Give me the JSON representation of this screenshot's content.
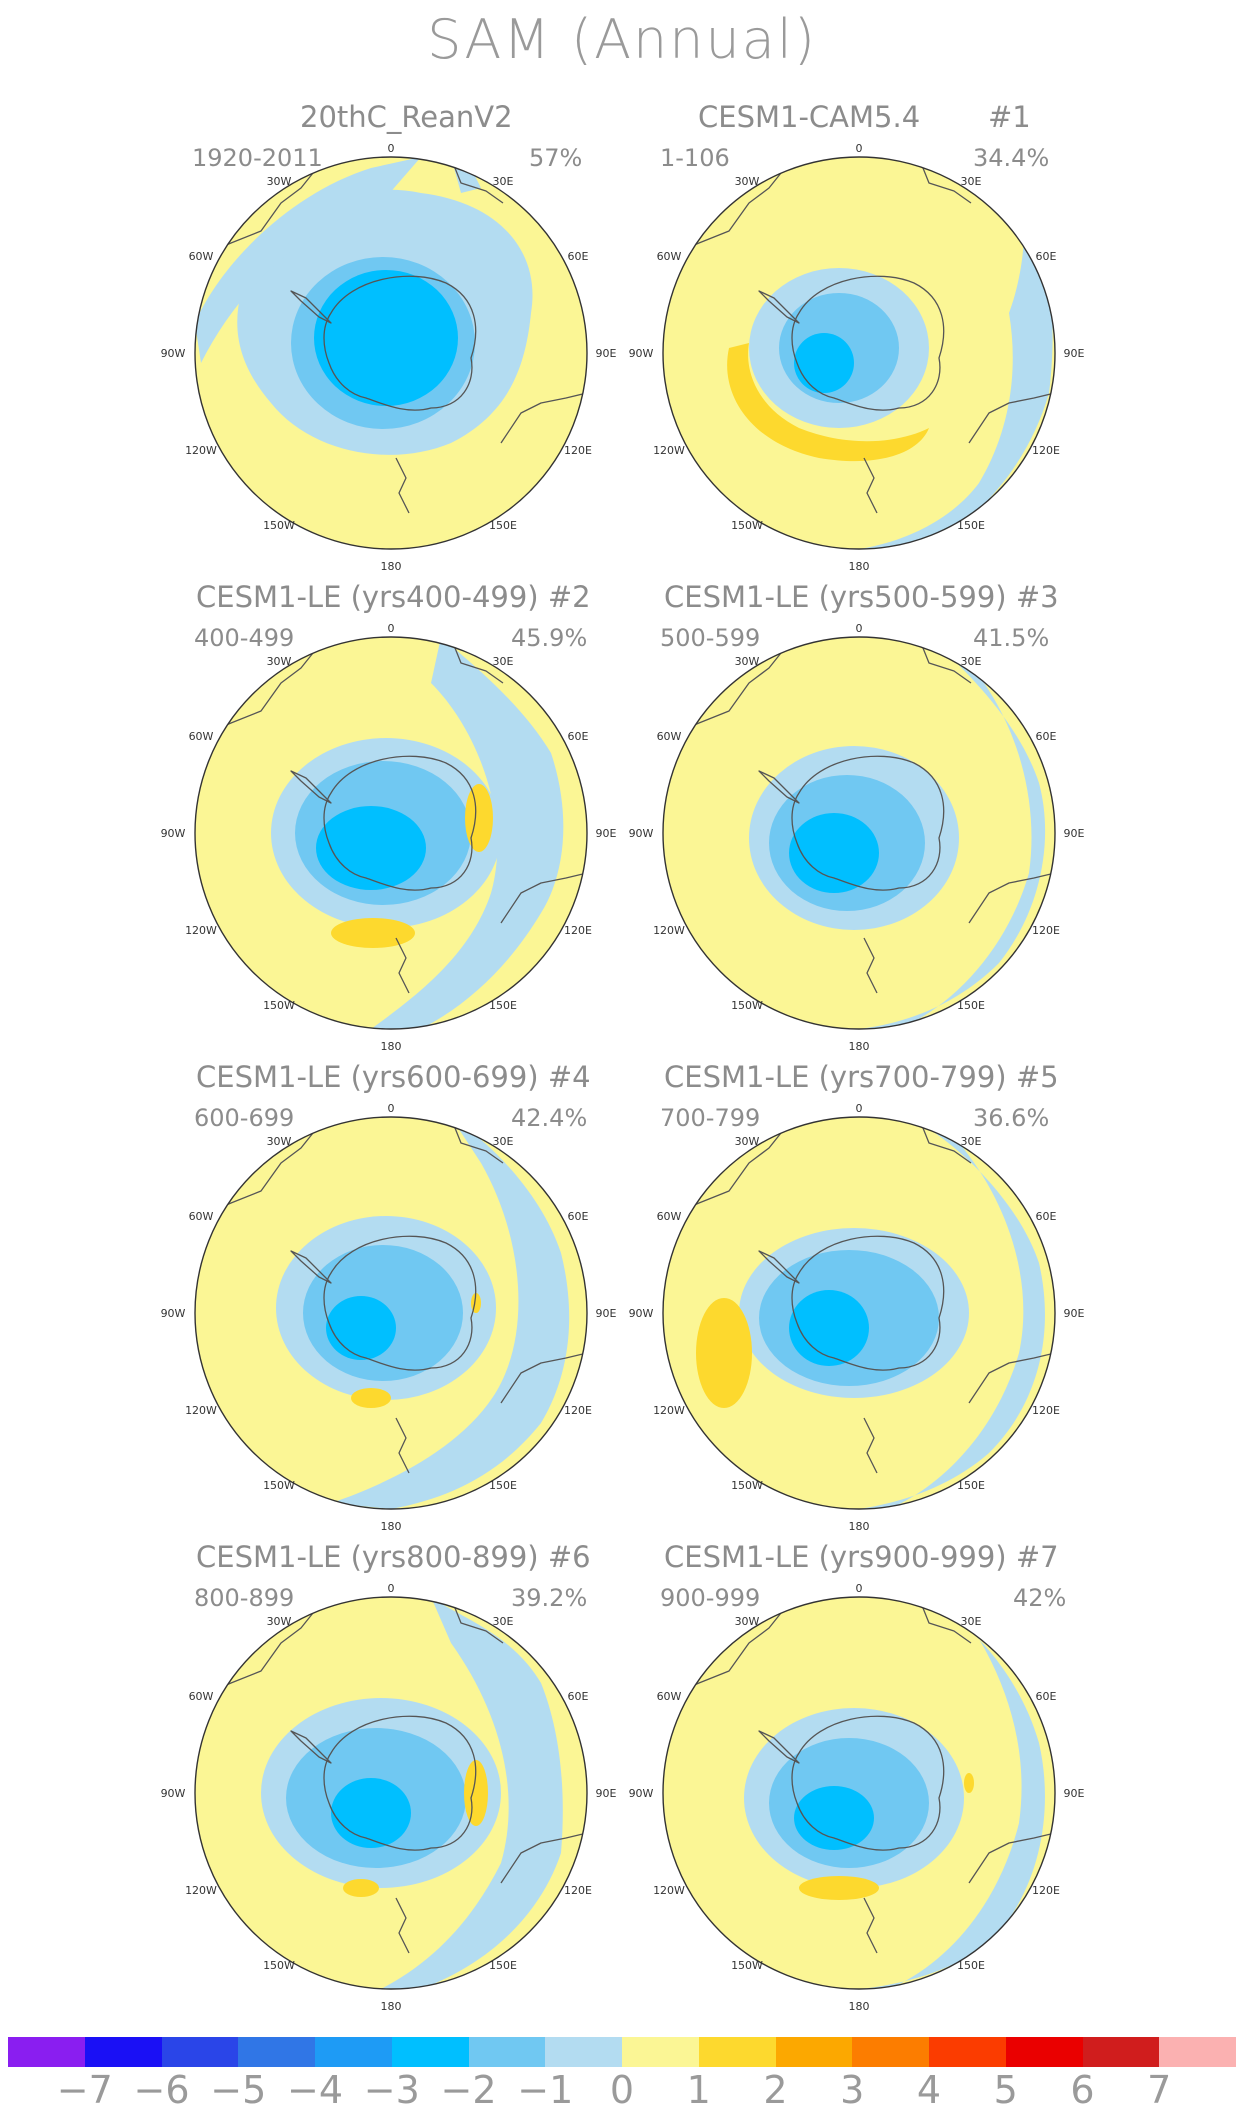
{
  "title": "SAM (Annual)",
  "map_labels": {
    "lon_top": "0",
    "lon_30e": "30E",
    "lon_60e": "60E",
    "lon_90e": "90E",
    "lon_120e": "120E",
    "lon_150e": "150E",
    "lon_180": "180",
    "lon_150w": "150W",
    "lon_120w": "120W",
    "lon_90w": "90W",
    "lon_60w": "60W",
    "lon_30w": "30W"
  },
  "panels": [
    {
      "title": "20thC_ReanV2",
      "tag": "",
      "period": "1920-2011",
      "percent": "57%"
    },
    {
      "title": "CESM1-CAM5.4",
      "tag": "#1",
      "period": "1-106",
      "percent": "34.4%"
    },
    {
      "title": "CESM1-LE (yrs400-499) #2",
      "tag": "",
      "period": "400-499",
      "percent": "45.9%"
    },
    {
      "title": "CESM1-LE (yrs500-599) #3",
      "tag": "",
      "period": "500-599",
      "percent": "41.5%"
    },
    {
      "title": "CESM1-LE (yrs600-699) #4",
      "tag": "",
      "period": "600-699",
      "percent": "42.4%"
    },
    {
      "title": "CESM1-LE (yrs700-799) #5",
      "tag": "",
      "period": "700-799",
      "percent": "36.6%"
    },
    {
      "title": "CESM1-LE (yrs800-899) #6",
      "tag": "",
      "period": "800-899",
      "percent": "39.2%"
    },
    {
      "title": "CESM1-LE (yrs900-999) #7",
      "tag": "",
      "period": "900-999",
      "percent": "42%"
    }
  ],
  "colorbar": {
    "labels": [
      "-7",
      "-6",
      "-5",
      "-4",
      "-3",
      "-2",
      "-1",
      "0",
      "1",
      "2",
      "3",
      "4",
      "5",
      "6",
      "7"
    ],
    "colors": [
      "#8a1ef0",
      "#1a10f5",
      "#2a45e8",
      "#3076e6",
      "#1e9bf5",
      "#00bfff",
      "#70c8f2",
      "#b3dcf1",
      "#fbf695",
      "#fdd92e",
      "#fca800",
      "#fc7d00",
      "#fb3c00",
      "#ea0000",
      "#d01d1d",
      "#fbb1b1"
    ],
    "palette_names": {
      "pos1": "#fbf695",
      "pos2": "#fdd92e",
      "neg1": "#b3dcf1",
      "neg2": "#70c8f2",
      "neg3": "#00bfff"
    }
  }
}
